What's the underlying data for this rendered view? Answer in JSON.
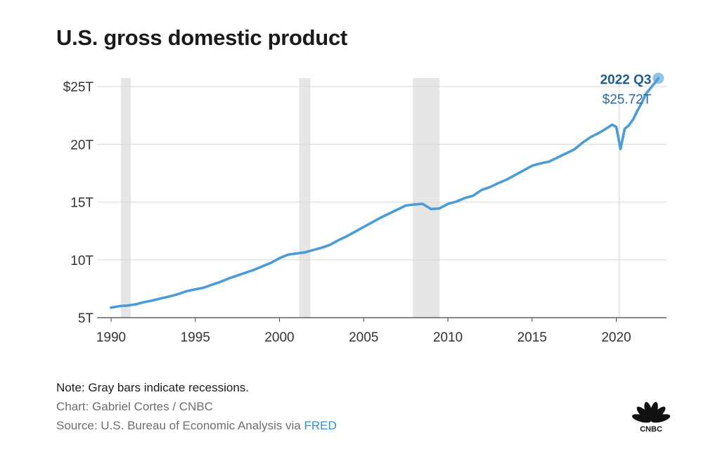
{
  "title": "U.S. gross domestic product",
  "notes": {
    "note": "Note: Gray bars indicate recessions.",
    "chart_credit": "Chart: Gabriel Cortes / CNBC",
    "source_prefix": "Source: U.S. Bureau of Economic Analysis via ",
    "source_link": "FRED"
  },
  "logo": {
    "icon": "cnbc-peacock-icon",
    "text": "CNBC"
  },
  "colors": {
    "line": "#4a9bd6",
    "recession": "#e6e6e6",
    "grid": "#d8d8d8",
    "annotation_title": "#1f5c8c",
    "annotation_value": "#2a6aa1",
    "link": "#2f8fd0"
  },
  "chart_data": {
    "type": "line",
    "title": "U.S. gross domestic product",
    "xlabel": "",
    "ylabel": "",
    "xlim": [
      1990,
      2023
    ],
    "ylim": [
      5,
      25
    ],
    "y_ticks": [
      5,
      10,
      15,
      20,
      25
    ],
    "y_tick_labels": [
      "5T",
      "10T",
      "15T",
      "20T",
      "$25T"
    ],
    "x_ticks": [
      1990,
      1995,
      2000,
      2005,
      2010,
      2015,
      2020
    ],
    "x_tick_labels": [
      "1990",
      "1995",
      "2000",
      "2005",
      "2010",
      "2015",
      "2020"
    ],
    "grid": "horizontal",
    "recessions": [
      [
        1990.58,
        1991.17
      ],
      [
        2001.17,
        2001.83
      ],
      [
        2007.92,
        2009.5
      ]
    ],
    "recession_2020": 2020.17,
    "series": [
      {
        "x": [
          1990.0,
          1990.5,
          1991.0,
          1991.5,
          1992.0,
          1992.5,
          1993.0,
          1993.5,
          1994.0,
          1994.5,
          1995.0,
          1995.5,
          1996.0,
          1996.5,
          1997.0,
          1997.5,
          1998.0,
          1998.5,
          1999.0,
          1999.5,
          2000.0,
          2000.5,
          2001.0,
          2001.5,
          2002.0,
          2002.5,
          2003.0,
          2003.5,
          2004.0,
          2004.5,
          2005.0,
          2005.5,
          2006.0,
          2006.5,
          2007.0,
          2007.5,
          2008.0,
          2008.5,
          2009.0,
          2009.5,
          2010.0,
          2010.5,
          2011.0,
          2011.5,
          2012.0,
          2012.5,
          2013.0,
          2013.5,
          2014.0,
          2014.5,
          2015.0,
          2015.5,
          2016.0,
          2016.5,
          2017.0,
          2017.5,
          2018.0,
          2018.5,
          2019.0,
          2019.5,
          2019.75,
          2020.0,
          2020.25,
          2020.5,
          2020.75,
          2021.0,
          2021.25,
          2021.5,
          2021.75,
          2022.0,
          2022.25,
          2022.5
        ],
        "values": [
          5.87,
          6.0,
          6.05,
          6.17,
          6.35,
          6.5,
          6.68,
          6.85,
          7.05,
          7.3,
          7.45,
          7.6,
          7.85,
          8.1,
          8.4,
          8.65,
          8.9,
          9.15,
          9.45,
          9.75,
          10.15,
          10.45,
          10.55,
          10.65,
          10.85,
          11.05,
          11.3,
          11.7,
          12.05,
          12.45,
          12.85,
          13.25,
          13.65,
          14.0,
          14.35,
          14.7,
          14.8,
          14.85,
          14.4,
          14.45,
          14.85,
          15.05,
          15.35,
          15.55,
          16.05,
          16.3,
          16.65,
          16.95,
          17.35,
          17.75,
          18.15,
          18.35,
          18.5,
          18.85,
          19.2,
          19.55,
          20.15,
          20.65,
          21.0,
          21.45,
          21.7,
          21.5,
          19.6,
          21.35,
          21.65,
          22.15,
          22.9,
          23.55,
          24.35,
          24.8,
          25.25,
          25.72
        ]
      }
    ],
    "annotation": {
      "label": "2022 Q3",
      "value_label": "$25.72T",
      "x": 2022.5,
      "y": 25.72
    }
  }
}
